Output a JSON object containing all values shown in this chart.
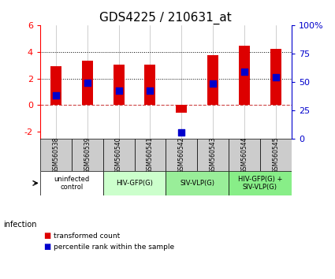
{
  "title": "GDS4225 / 210631_at",
  "samples": [
    "GSM560538",
    "GSM560539",
    "GSM560540",
    "GSM560541",
    "GSM560542",
    "GSM560543",
    "GSM560544",
    "GSM560545"
  ],
  "transformed_counts": [
    2.95,
    3.35,
    3.05,
    3.05,
    -0.55,
    3.75,
    4.45,
    4.2
  ],
  "percentile_ranks": [
    0.75,
    1.7,
    1.1,
    1.1,
    -2.05,
    1.65,
    2.5,
    2.1
  ],
  "bar_color": "#dd0000",
  "dot_color": "#0000cc",
  "ylim_left": [
    -2.5,
    6
  ],
  "ylim_right": [
    0,
    100
  ],
  "yticks_left": [
    -2,
    0,
    2,
    4,
    6
  ],
  "yticks_right": [
    0,
    25,
    50,
    75,
    100
  ],
  "ytick_labels_right": [
    "0",
    "25",
    "50",
    "75",
    "100%"
  ],
  "dotted_lines": [
    2,
    4
  ],
  "groups": [
    {
      "label": "uninfected\ncontrol",
      "span": [
        0,
        2
      ],
      "color": "#ffffff"
    },
    {
      "label": "HIV-GFP(G)",
      "span": [
        2,
        4
      ],
      "color": "#ccffcc"
    },
    {
      "label": "SIV-VLP(G)",
      "span": [
        4,
        6
      ],
      "color": "#99ee99"
    },
    {
      "label": "HIV-GFP(G) +\nSIV-VLP(G)",
      "span": [
        6,
        8
      ],
      "color": "#88ee88"
    }
  ],
  "infection_label": "infection",
  "legend_items": [
    {
      "label": "transformed count",
      "color": "#dd0000"
    },
    {
      "label": "percentile rank within the sample",
      "color": "#0000cc"
    }
  ],
  "bar_width": 0.35,
  "dot_size": 30,
  "background_color": "#ffffff",
  "grid_color": "#aaaaaa",
  "sample_box_color": "#cccccc",
  "right_axis_color": "#0000cc"
}
